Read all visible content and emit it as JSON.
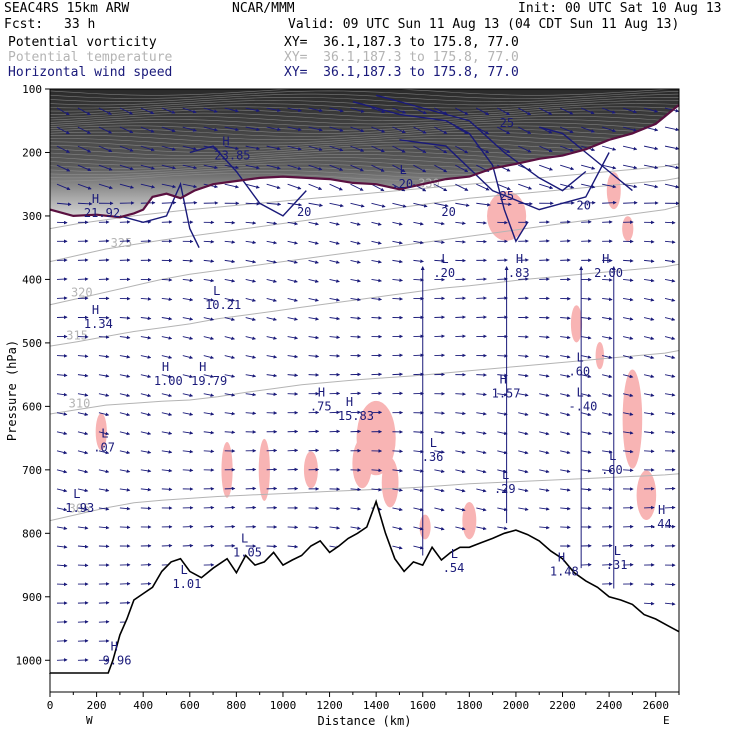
{
  "header": {
    "model": "SEAC4RS 15km ARW",
    "org": "NCAR/MMM",
    "init": "Init: 00 UTC Sat 10 Aug 13",
    "fcst_label": "Fcst:",
    "fcst_value": "33 h",
    "valid": "Valid: 09 UTC Sun 11 Aug 13 (04 CDT Sun 11 Aug 13)",
    "fields": [
      {
        "name": "Potential vorticity",
        "xy": "XY=  36.1,187.3 to 175.8, 77.0",
        "color": "#000000"
      },
      {
        "name": "Potential temperature",
        "xy": "XY=  36.1,187.3 to 175.8, 77.0",
        "color": "#b4b4b4"
      },
      {
        "name": "Horizontal wind speed",
        "xy": "XY=  36.1,187.3 to 175.8, 77.0",
        "color": "#1a1a7a"
      }
    ]
  },
  "chart_data": {
    "type": "cross-section",
    "xlabel": "Distance (km)",
    "ylabel": "Pressure (hPa)",
    "xlim": [
      0,
      2700
    ],
    "ylim_pressure": [
      1050,
      100
    ],
    "x_ticks": [
      "0",
      "200",
      "400",
      "600",
      "800",
      "1000",
      "1200",
      "1400",
      "1600",
      "1800",
      "2000",
      "2200",
      "2400",
      "2600"
    ],
    "y_ticks": [
      "100",
      "200",
      "300",
      "400",
      "500",
      "600",
      "700",
      "800",
      "900",
      "1000"
    ],
    "x_end_labels": {
      "left": "W",
      "right": "E"
    },
    "colors": {
      "wind_contour": "#1a1a7a",
      "theta_contour": "#b4b4b4",
      "pv_shade_high": "#3c3c3c",
      "pv_pink": "#f8b4b4",
      "dynamic_tropopause": "#5a1040",
      "terrain": "#000000"
    },
    "terrain": {
      "x": [
        0,
        250,
        270,
        300,
        330,
        360,
        400,
        440,
        480,
        520,
        560,
        600,
        650,
        700,
        760,
        800,
        840,
        880,
        920,
        960,
        1000,
        1040,
        1080,
        1120,
        1160,
        1200,
        1240,
        1280,
        1320,
        1360,
        1400,
        1440,
        1480,
        1520,
        1560,
        1600,
        1640,
        1680,
        1720,
        1760,
        1800,
        1850,
        1900,
        1950,
        2000,
        2050,
        2100,
        2150,
        2200,
        2250,
        2300,
        2350,
        2400,
        2450,
        2500,
        2550,
        2600,
        2650,
        2700
      ],
      "p": [
        1020,
        1020,
        1000,
        960,
        935,
        905,
        895,
        885,
        860,
        845,
        840,
        860,
        870,
        855,
        840,
        862,
        835,
        850,
        845,
        830,
        850,
        842,
        835,
        820,
        812,
        830,
        820,
        808,
        800,
        790,
        750,
        800,
        840,
        860,
        845,
        850,
        822,
        842,
        830,
        822,
        822,
        815,
        808,
        800,
        795,
        802,
        812,
        828,
        840,
        862,
        875,
        885,
        900,
        905,
        912,
        928,
        935,
        945,
        955
      ]
    },
    "tropopause": {
      "x": [
        0,
        100,
        200,
        300,
        360,
        400,
        440,
        500,
        560,
        620,
        700,
        800,
        900,
        1000,
        1100,
        1200,
        1300,
        1400,
        1500,
        1600,
        1700,
        1800,
        1900,
        2000,
        2100,
        2200,
        2300,
        2400,
        2500,
        2600,
        2700
      ],
      "p": [
        290,
        300,
        298,
        302,
        296,
        290,
        270,
        265,
        272,
        260,
        250,
        245,
        240,
        238,
        240,
        242,
        248,
        250,
        258,
        250,
        242,
        238,
        225,
        218,
        210,
        205,
        195,
        180,
        170,
        155,
        125
      ]
    },
    "theta_levels": [
      {
        "label": "305",
        "p": [
          780,
          770,
          760,
          752,
          748,
          745,
          742,
          740,
          738,
          736,
          734,
          732,
          730,
          728,
          725,
          722,
          720,
          718,
          716,
          714,
          712,
          710,
          708,
          706
        ]
      },
      {
        "label": "310",
        "p": [
          612,
          605,
          598,
          595,
          592,
          590,
          585,
          578,
          572,
          566,
          562,
          558,
          555,
          552,
          548,
          544,
          540,
          536,
          532,
          528,
          524,
          520,
          516,
          512
        ]
      },
      {
        "label": "315",
        "p": [
          505,
          498,
          490,
          482,
          476,
          470,
          462,
          456,
          450,
          444,
          438,
          432,
          426,
          420,
          414,
          410,
          405,
          400,
          396,
          392,
          388,
          384,
          380,
          376
        ]
      },
      {
        "label": "320",
        "p": [
          440,
          430,
          420,
          410,
          400,
          392,
          386,
          380,
          374,
          368,
          362,
          356,
          350,
          344,
          338,
          332,
          326,
          320,
          314,
          308,
          302,
          296,
          290,
          284
        ]
      },
      {
        "label": "325",
        "p": [
          372,
          362,
          352,
          345,
          338,
          332,
          326,
          320,
          314,
          308,
          302,
          296,
          290,
          284,
          278,
          272,
          268,
          264,
          260,
          256,
          252,
          248,
          244,
          240
        ]
      },
      {
        "label": "330",
        "p": [
          320,
          312,
          306,
          300,
          295,
          290,
          286,
          282,
          278,
          274,
          270,
          266,
          262,
          258,
          254,
          250,
          246,
          242,
          238,
          234,
          230,
          226,
          222,
          218
        ]
      }
    ],
    "theta_x": [
      0,
      120,
      240,
      360,
      480,
      600,
      720,
      840,
      960,
      1080,
      1200,
      1320,
      1440,
      1560,
      1680,
      1800,
      1920,
      2040,
      2160,
      2280,
      2400,
      2520,
      2640,
      2700
    ],
    "markers": [
      {
        "type": "H",
        "value": "21.92",
        "x": 180,
        "p": 295
      },
      {
        "type": "H",
        "value": "23.85",
        "x": 740,
        "p": 205
      },
      {
        "type": "L",
        "value": ".20",
        "x": 1500,
        "p": 250
      },
      {
        "type": "L",
        "value": ".20",
        "x": 1680,
        "p": 390
      },
      {
        "type": "H",
        "value": ".83",
        "x": 2000,
        "p": 390
      },
      {
        "type": "H",
        "value": "2.00",
        "x": 2370,
        "p": 390
      },
      {
        "type": "L",
        "value": "10.21",
        "x": 700,
        "p": 440
      },
      {
        "type": "H",
        "value": "1.34",
        "x": 180,
        "p": 470
      },
      {
        "type": "H",
        "value": "1.00",
        "x": 480,
        "p": 560
      },
      {
        "type": "H",
        "value": "19.79",
        "x": 640,
        "p": 560
      },
      {
        "type": "L",
        "value": ".60",
        "x": 2260,
        "p": 545
      },
      {
        "type": "H",
        "value": "1.57",
        "x": 1930,
        "p": 580
      },
      {
        "type": "H",
        "value": ".75",
        "x": 1150,
        "p": 600
      },
      {
        "type": "H",
        "value": "15.83",
        "x": 1270,
        "p": 615
      },
      {
        "type": "L",
        "value": "-.40",
        "x": 2260,
        "p": 600
      },
      {
        "type": "L",
        "value": ".07",
        "x": 220,
        "p": 665
      },
      {
        "type": "L",
        "value": ".36",
        "x": 1630,
        "p": 680
      },
      {
        "type": "L",
        "value": ".29",
        "x": 1940,
        "p": 730
      },
      {
        "type": "L",
        "value": ".60",
        "x": 2400,
        "p": 700
      },
      {
        "type": "L",
        "value": "1.93",
        "x": 100,
        "p": 760
      },
      {
        "type": "H",
        "value": ".44",
        "x": 2610,
        "p": 785
      },
      {
        "type": "L",
        "value": "1.05",
        "x": 820,
        "p": 830
      },
      {
        "type": "L",
        "value": ".54",
        "x": 1720,
        "p": 855
      },
      {
        "type": "H",
        "value": "1.48",
        "x": 2180,
        "p": 860
      },
      {
        "type": "L",
        "value": ".31",
        "x": 2420,
        "p": 850
      },
      {
        "type": "L",
        "value": "1.01",
        "x": 560,
        "p": 880
      },
      {
        "type": "H",
        "value": "9.96",
        "x": 260,
        "p": 1000
      }
    ],
    "wind_contour_labels": [
      {
        "value": "20",
        "x": 1060,
        "p": 300
      },
      {
        "value": "20",
        "x": 1680,
        "p": 300
      },
      {
        "value": "25",
        "x": 1930,
        "p": 275
      },
      {
        "value": "20",
        "x": 2260,
        "p": 290
      },
      {
        "value": "25",
        "x": 1930,
        "p": 160
      }
    ]
  }
}
